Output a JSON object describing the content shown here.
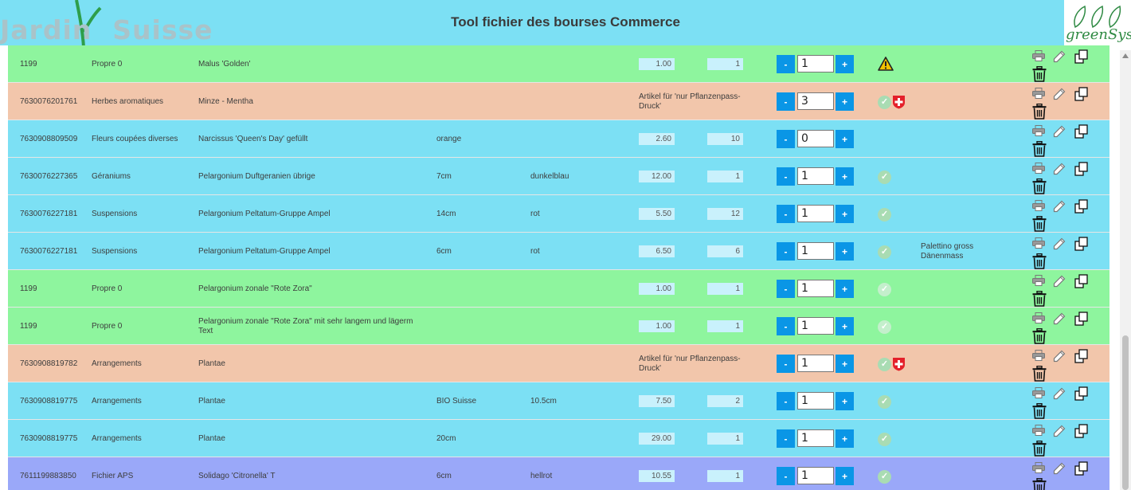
{
  "header": {
    "logo_text_left": "Jardin",
    "logo_text_right": "Suisse",
    "title": "Tool fichier des bourses Commerce",
    "brand": "greenSys"
  },
  "colors": {
    "header": "#7ce0f4",
    "green": "#8ef59e",
    "salmon": "#f2c6ab",
    "blue": "#7ce0f4",
    "purple": "#9aa8f9",
    "button": "#0a96e6"
  },
  "controls": {
    "minus_label": "-",
    "plus_label": "+"
  },
  "icons": {
    "warning": "warning-triangle-icon",
    "ok": "check-circle-icon",
    "swiss": "swiss-cross-icon",
    "print": "printer-icon",
    "edit": "pencil-icon",
    "copy": "copy-icon",
    "delete": "trash-icon"
  },
  "rows": [
    {
      "color": "green",
      "code": "1199",
      "category": "Propre 0",
      "name": "Malus 'Golden'",
      "size": "",
      "color_text": "",
      "note": "",
      "price": "1.00",
      "qty": "1",
      "count": "1",
      "status": "warning",
      "extra": ""
    },
    {
      "color": "salmon",
      "code": "7630076201761",
      "category": "Herbes aromatiques",
      "name": "Minze - Mentha",
      "size": "",
      "color_text": "",
      "note": "Artikel für 'nur Pflanzenpass-Druck'",
      "price": "",
      "qty": "",
      "count": "3",
      "status": "ok-swiss",
      "extra": ""
    },
    {
      "color": "blue",
      "code": "7630908809509",
      "category": "Fleurs coupées diverses",
      "name": "Narcissus 'Queen's Day' gefüllt",
      "size": "orange",
      "color_text": "",
      "note": "",
      "price": "2.60",
      "qty": "10",
      "count": "0",
      "status": "none",
      "extra": ""
    },
    {
      "color": "blue",
      "code": "7630076227365",
      "category": "Géraniums",
      "name": "Pelargonium Duftgeranien übrige",
      "size": "7cm",
      "color_text": "dunkelblau",
      "note": "",
      "price": "12.00",
      "qty": "1",
      "count": "1",
      "status": "ok",
      "extra": ""
    },
    {
      "color": "blue",
      "code": "7630076227181",
      "category": "Suspensions",
      "name": "Pelargonium Peltatum-Gruppe Ampel",
      "size": "14cm",
      "color_text": "rot",
      "note": "",
      "price": "5.50",
      "qty": "12",
      "count": "1",
      "status": "ok",
      "extra": ""
    },
    {
      "color": "blue",
      "code": "7630076227181",
      "category": "Suspensions",
      "name": "Pelargonium Peltatum-Gruppe Ampel",
      "size": "6cm",
      "color_text": "rot",
      "note": "",
      "price": "6.50",
      "qty": "6",
      "count": "1",
      "status": "ok",
      "extra": "Palettino gross Dänenmass"
    },
    {
      "color": "green",
      "code": "1199",
      "category": "Propre 0",
      "name": "Pelargonium zonale \"Rote Zora\"",
      "size": "",
      "color_text": "",
      "note": "",
      "price": "1.00",
      "qty": "1",
      "count": "1",
      "status": "ok",
      "extra": ""
    },
    {
      "color": "green",
      "code": "1199",
      "category": "Propre 0",
      "name": "Pelargonium zonale \"Rote Zora\" mit sehr langem und lägerm Text",
      "size": "",
      "color_text": "",
      "note": "",
      "price": "1.00",
      "qty": "1",
      "count": "1",
      "status": "ok",
      "extra": ""
    },
    {
      "color": "salmon",
      "code": "7630908819782",
      "category": "Arrangements",
      "name": "Plantae",
      "size": "",
      "color_text": "",
      "note": "Artikel für 'nur Pflanzenpass-Druck'",
      "price": "",
      "qty": "",
      "count": "1",
      "status": "ok-swiss",
      "extra": ""
    },
    {
      "color": "blue",
      "code": "7630908819775",
      "category": "Arrangements",
      "name": "Plantae",
      "size": "BIO Suisse",
      "color_text": "10.5cm",
      "note": "",
      "price": "7.50",
      "qty": "2",
      "count": "1",
      "status": "ok",
      "extra": ""
    },
    {
      "color": "blue",
      "code": "7630908819775",
      "category": "Arrangements",
      "name": "Plantae",
      "size": "20cm",
      "color_text": "",
      "note": "",
      "price": "29.00",
      "qty": "1",
      "count": "1",
      "status": "ok",
      "extra": ""
    },
    {
      "color": "purple",
      "code": "7611199883850",
      "category": "Fichier APS",
      "name": "Solidago 'Citronella' T",
      "size": "6cm",
      "color_text": "hellrot",
      "note": "",
      "price": "10.55",
      "qty": "1",
      "count": "1",
      "status": "ok",
      "extra": ""
    }
  ]
}
